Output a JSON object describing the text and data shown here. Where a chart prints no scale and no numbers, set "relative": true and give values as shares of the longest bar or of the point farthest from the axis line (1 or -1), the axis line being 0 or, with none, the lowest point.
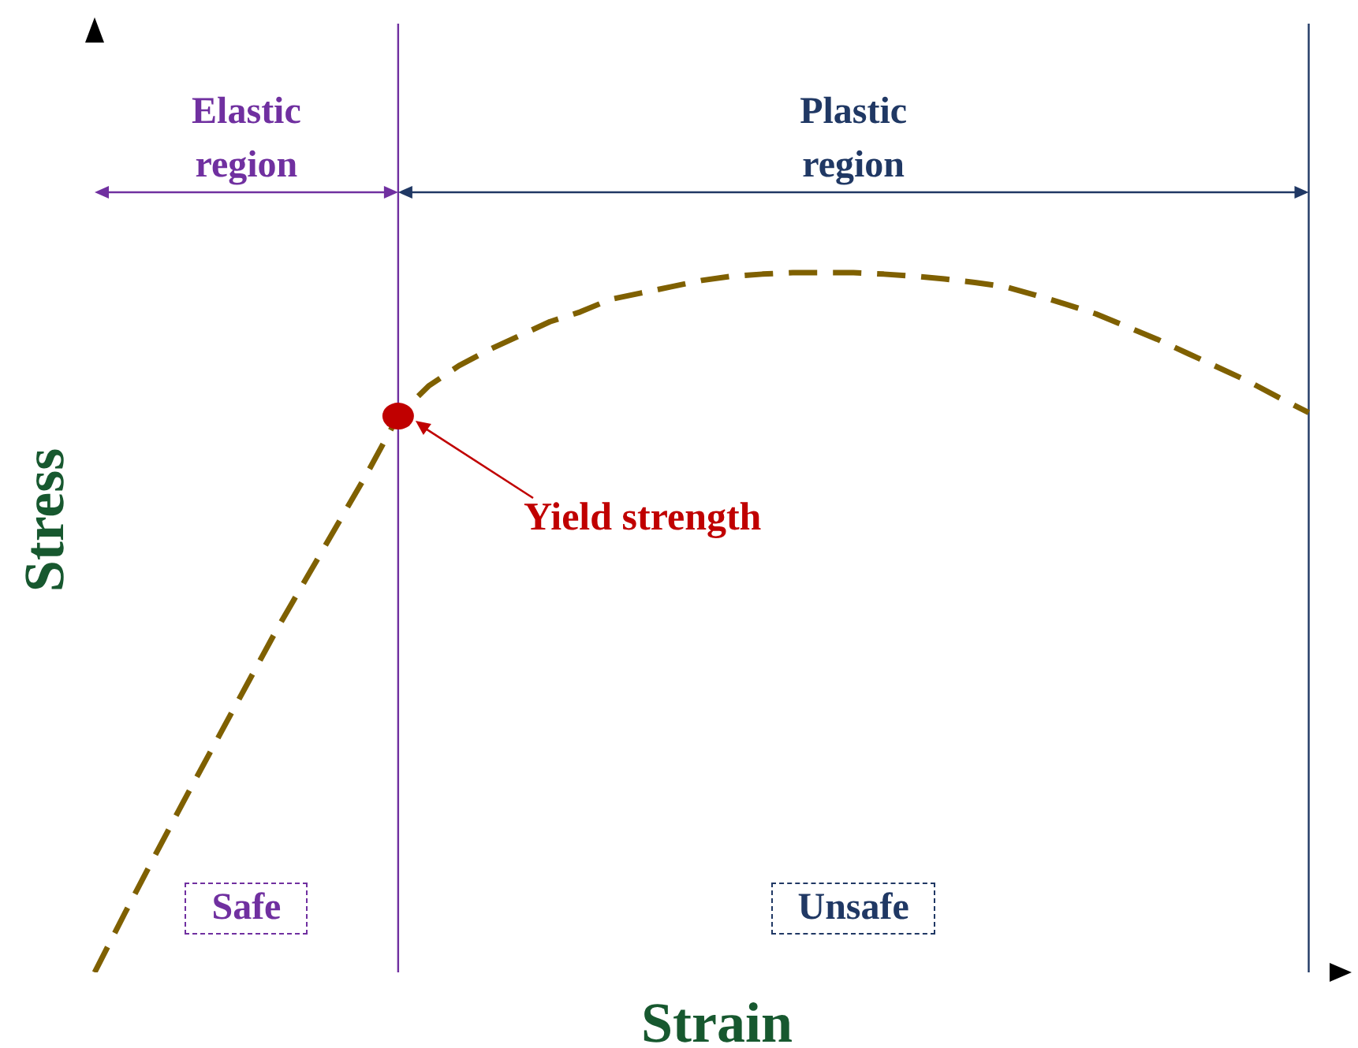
{
  "chart_data": {
    "type": "line",
    "relative": true,
    "xlabel": "Strain",
    "ylabel": "Stress",
    "legend": false,
    "grid": false,
    "categories": [
      null,
      null,
      null,
      null,
      null,
      null,
      null,
      null,
      null,
      null,
      null,
      null,
      null,
      null,
      null,
      null,
      null,
      null,
      null,
      null,
      null,
      null,
      null,
      null,
      null,
      null,
      null,
      null,
      null,
      null,
      null,
      null,
      null,
      null,
      null,
      null,
      null,
      null,
      null,
      null,
      null,
      null
    ],
    "series": [
      {
        "color": "#7f6000",
        "line_style": "dashed",
        "marker": "none",
        "values": [
          0,
          0.085,
          0.168,
          0.25,
          0.33,
          0.41,
          0.49,
          0.565,
          0.64,
          0.715,
          0.795,
          0.838,
          0.867,
          0.89,
          0.91,
          0.93,
          0.944,
          0.962,
          0.971,
          0.98,
          0.989,
          0.995,
          0.998,
          1.0,
          1.0,
          1.0,
          0.998,
          0.995,
          0.991,
          0.986,
          0.98,
          0.968,
          0.955,
          0.941,
          0.923,
          0.905,
          0.885,
          0.865,
          0.845,
          0.822,
          0.8,
          null
        ]
      }
    ],
    "annotations": [
      "Elastic region",
      "Plastic region",
      "Safe",
      "Unsafe",
      "Yield strength"
    ]
  }
}
